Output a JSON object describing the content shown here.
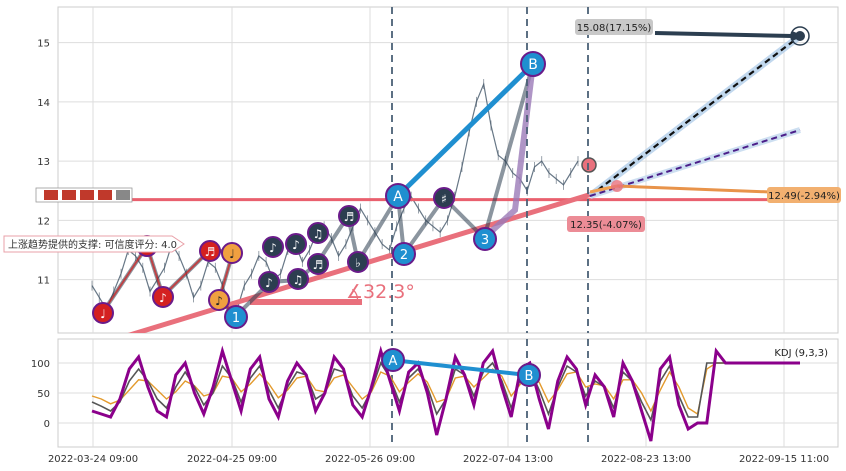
{
  "chart_data": [
    {
      "type": "line",
      "panel": "price",
      "y_ticks": [
        11,
        12,
        13,
        14,
        15
      ],
      "ylim": [
        10.1,
        15.6
      ],
      "x_tick_labels": [
        "2022-03-24 09:00",
        "2022-04-25 09:00",
        "2022-05-26 09:00",
        "2022-07-04 13:00",
        "2022-08-23 13:00",
        "2022-09-15 11:00"
      ],
      "series": [
        {
          "x": [
            0,
            2,
            4,
            6,
            8,
            10,
            12,
            14,
            16,
            18,
            20,
            22,
            24,
            26,
            28,
            30,
            32,
            34,
            36,
            38,
            40,
            42,
            44,
            46,
            48,
            50,
            52,
            54,
            56,
            58,
            60,
            62,
            64,
            66,
            68,
            70,
            72,
            74,
            76,
            78,
            80,
            82,
            84,
            86,
            88,
            90,
            92,
            94,
            96,
            98,
            100,
            102,
            104,
            106,
            108,
            110,
            112,
            114,
            116,
            118,
            120,
            122,
            124,
            126,
            128,
            130,
            132,
            134
          ],
          "values": [
            10.9,
            10.7,
            10.5,
            10.8,
            11.1,
            11.5,
            11.4,
            11.2,
            10.8,
            11.0,
            11.2,
            11.6,
            11.4,
            11.1,
            10.7,
            10.9,
            11.3,
            11.2,
            10.9,
            10.6,
            10.5,
            10.9,
            11.1,
            11.4,
            11.3,
            11.0,
            11.1,
            11.5,
            11.6,
            11.3,
            11.5,
            11.8,
            11.9,
            11.7,
            11.4,
            11.6,
            11.9,
            12.2,
            12.0,
            11.8,
            11.6,
            11.5,
            11.9,
            12.2,
            12.4,
            12.2,
            12.0,
            11.9,
            11.8,
            12.0,
            12.4,
            12.9,
            13.5,
            14.0,
            14.3,
            13.6,
            13.1,
            13.0,
            12.8,
            12.7,
            12.5,
            12.9,
            13.0,
            12.8,
            12.7,
            12.6,
            12.8,
            13.0
          ]
        }
      ],
      "horizontal_line": {
        "value": 12.35,
        "color": "#e9606e"
      },
      "trend_angle_label": "∡32.3°",
      "wave_labels": [
        "A",
        "B",
        "1",
        "2",
        "3"
      ],
      "annotations": [
        {
          "text": "15.08(17.15%)"
        },
        {
          "text": "12.49(-2.94%)"
        },
        {
          "text": "12.35(-4.07%)"
        },
        {
          "text": "上涨趋势提供的支撑: 可信度评分: 4.0"
        }
      ]
    },
    {
      "type": "line",
      "panel": "KDJ",
      "legend": "KDJ (9,3,3)",
      "y_ticks": [
        0,
        50,
        100
      ],
      "ylim": [
        -40,
        140
      ],
      "wave_labels": [
        "A",
        "B"
      ],
      "series": [
        {
          "name": "J",
          "color": "#8b008b",
          "values": [
            20,
            15,
            10,
            40,
            90,
            110,
            60,
            20,
            10,
            80,
            100,
            50,
            15,
            60,
            120,
            70,
            20,
            90,
            110,
            40,
            10,
            70,
            100,
            80,
            20,
            50,
            110,
            90,
            30,
            10,
            60,
            120,
            70,
            20,
            85,
            100,
            50,
            -20,
            40,
            110,
            80,
            30,
            100,
            120,
            60,
            10,
            90,
            100,
            40,
            -10,
            70,
            110,
            90,
            30,
            80,
            60,
            10,
            100,
            70,
            20,
            -30,
            90,
            110,
            30,
            -10,
            0,
            0,
            120,
            100,
            100,
            100,
            100,
            100,
            100,
            100,
            100,
            100
          ]
        },
        {
          "name": "K",
          "color": "#555555",
          "values": [
            35,
            28,
            20,
            35,
            70,
            90,
            70,
            40,
            25,
            60,
            85,
            60,
            30,
            50,
            95,
            75,
            35,
            75,
            95,
            55,
            25,
            60,
            85,
            80,
            40,
            50,
            90,
            85,
            45,
            25,
            55,
            100,
            75,
            35,
            75,
            90,
            60,
            15,
            40,
            90,
            80,
            45,
            85,
            100,
            70,
            25,
            75,
            90,
            55,
            15,
            60,
            95,
            85,
            45,
            70,
            60,
            25,
            85,
            70,
            35,
            5,
            70,
            95,
            45,
            10,
            10,
            100,
            100,
            100,
            100,
            100,
            100,
            100,
            100,
            100,
            100,
            100
          ]
        },
        {
          "name": "D",
          "color": "#e39a2d",
          "values": [
            45,
            40,
            32,
            38,
            55,
            72,
            70,
            55,
            40,
            52,
            70,
            62,
            45,
            50,
            78,
            75,
            52,
            65,
            82,
            65,
            42,
            55,
            75,
            78,
            55,
            52,
            75,
            80,
            60,
            40,
            52,
            85,
            78,
            52,
            68,
            82,
            68,
            35,
            40,
            75,
            78,
            60,
            75,
            90,
            78,
            45,
            65,
            82,
            68,
            35,
            55,
            82,
            85,
            60,
            65,
            62,
            40,
            72,
            72,
            50,
            20,
            55,
            85,
            60,
            25,
            15,
            90,
            100,
            100,
            100,
            100,
            100,
            100,
            100,
            100,
            100,
            100
          ]
        }
      ]
    }
  ]
}
